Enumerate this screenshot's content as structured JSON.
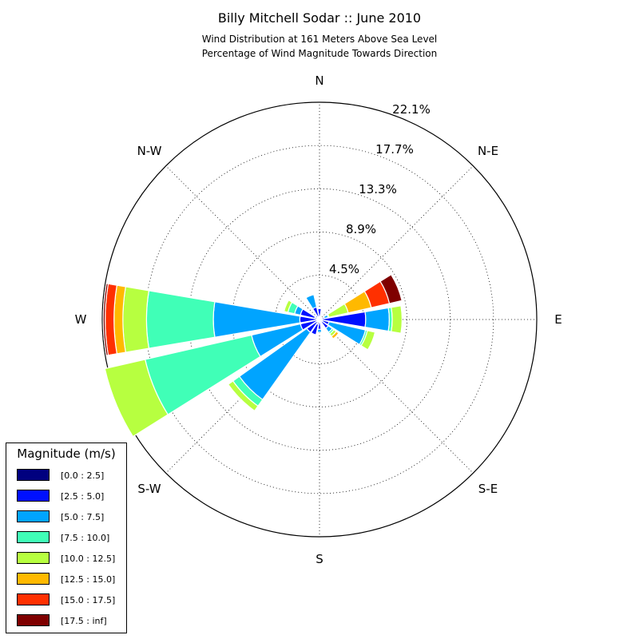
{
  "chart_data": {
    "type": "windrose",
    "title": "Billy Mitchell Sodar :: June 2010",
    "subtitle": [
      "Wind Distribution at 161 Meters Above Sea Level",
      "Percentage of Wind Magnitude Towards Direction"
    ],
    "directions": [
      "N",
      "N-E",
      "E",
      "S-E",
      "S",
      "S-W",
      "W",
      "N-W"
    ],
    "ring_labels": [
      "4.5%",
      "8.9%",
      "13.3%",
      "17.7%",
      "22.1%"
    ],
    "ring_values": [
      4.5,
      8.9,
      13.3,
      17.7,
      22.1
    ],
    "rmax": 22.1,
    "legend": {
      "title": "Magnitude (m/s)",
      "entries": [
        "[0.0 : 2.5]",
        "[2.5 : 5.0]",
        "[5.0 : 7.5]",
        "[7.5 : 10.0]",
        "[10.0 : 12.5]",
        "[12.5 : 15.0]",
        "[15.0 : 17.5]",
        "[17.5 : inf]"
      ]
    },
    "colors": [
      "#00007f",
      "#0010ff",
      "#00a4ff",
      "#40ffb7",
      "#b7ff40",
      "#ffb900",
      "#ff3000",
      "#7f0000"
    ],
    "sectors": [
      {
        "dir_deg": 0,
        "cum": [
          0.3,
          1.1
        ]
      },
      {
        "dir_deg": 22.5,
        "cum": [
          0.2,
          0.3
        ]
      },
      {
        "dir_deg": 45,
        "cum": [
          0.2,
          0.3
        ]
      },
      {
        "dir_deg": 67.5,
        "cum": [
          0.2,
          0.5,
          0.9,
          1.0,
          3.0,
          5.4,
          7.3,
          8.6
        ]
      },
      {
        "dir_deg": 90,
        "cum": [
          0.2,
          4.7,
          7.1,
          7.4,
          8.4
        ]
      },
      {
        "dir_deg": 112.5,
        "cum": [
          0.3,
          1.0,
          4.8,
          5.0,
          5.8
        ]
      },
      {
        "dir_deg": 135,
        "cum": [
          0.2,
          1.1,
          1.6,
          1.8,
          2.1,
          2.4
        ]
      },
      {
        "dir_deg": 157.5,
        "cum": [
          0.2,
          0.3
        ]
      },
      {
        "dir_deg": 180,
        "cum": [
          0.2,
          1.0,
          1.3
        ]
      },
      {
        "dir_deg": 202.5,
        "cum": [
          0.5,
          1.6
        ]
      },
      {
        "dir_deg": 225,
        "cum": [
          0.3,
          1.6,
          10.0,
          10.8,
          11.4
        ]
      },
      {
        "dir_deg": 247.5,
        "cum": [
          0.2,
          2.0,
          7.1,
          18.2,
          22.4
        ]
      },
      {
        "dir_deg": 270,
        "cum": [
          0.3,
          2.0,
          10.8,
          17.6,
          20.0,
          20.9,
          21.8,
          22.0
        ]
      },
      {
        "dir_deg": 292.5,
        "cum": [
          0.5,
          2.0,
          2.6,
          3.3,
          3.7
        ]
      },
      {
        "dir_deg": 315,
        "cum": [
          0.3,
          0.5,
          0.6
        ]
      },
      {
        "dir_deg": 337.5,
        "cum": [
          0.3,
          1.3,
          2.6
        ]
      }
    ]
  }
}
